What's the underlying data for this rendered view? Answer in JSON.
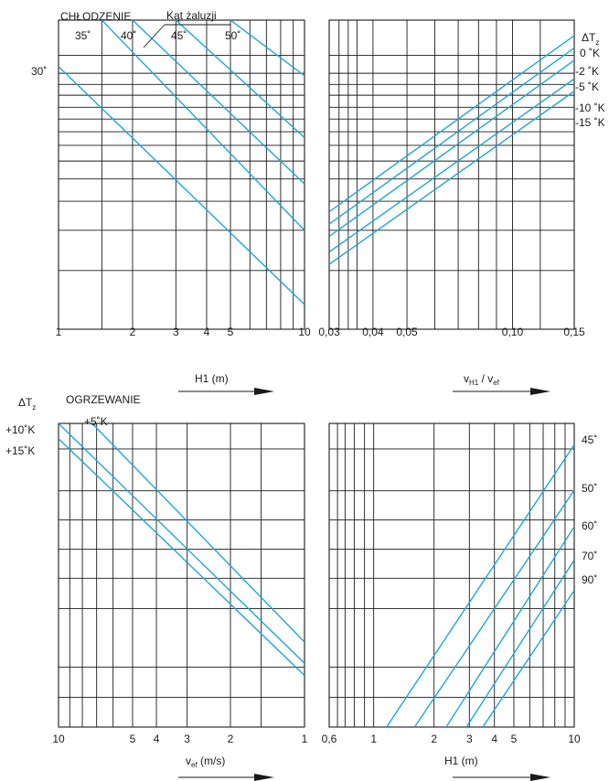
{
  "colors": {
    "curve": "#1ea6d6",
    "grid": "#1a1a1a",
    "text": "#1a1a1a"
  },
  "chart_data": [
    {
      "type": "line",
      "id": "top_left",
      "title": "CHŁODZENIE",
      "annotation": "Kąt żaluzji",
      "xlabel": "H1 (m)",
      "x_scale": "log",
      "xlim": [
        1,
        10
      ],
      "x_ticks": [
        "1",
        "2",
        "3",
        "4",
        "5",
        "10"
      ],
      "series": [
        {
          "name": "30°",
          "x": [
            1,
            10
          ],
          "y": [
            0.85,
            0.08
          ]
        },
        {
          "name": "35°",
          "x": [
            1.5,
            10
          ],
          "y": [
            1.0,
            0.32
          ]
        },
        {
          "name": "40°",
          "x": [
            2,
            10
          ],
          "y": [
            1.0,
            0.47
          ]
        },
        {
          "name": "45°",
          "x": [
            3,
            10
          ],
          "y": [
            1.0,
            0.62
          ]
        },
        {
          "name": "50°",
          "x": [
            5,
            10
          ],
          "y": [
            1.0,
            0.82
          ]
        }
      ]
    },
    {
      "type": "line",
      "id": "top_right",
      "series_title": "ΔTz",
      "xlabel": "vH1 / vef",
      "x_scale": "log",
      "xlim": [
        0.03,
        0.15
      ],
      "x_ticks": [
        "0,03",
        "0,04",
        "0,05",
        "0,10",
        "0,15"
      ],
      "series": [
        {
          "name": "0 °K",
          "x": [
            0.03,
            0.15
          ],
          "y": [
            0.38,
            0.95
          ]
        },
        {
          "name": "-2 °K",
          "x": [
            0.03,
            0.15
          ],
          "y": [
            0.34,
            0.91
          ]
        },
        {
          "name": "-5 °K",
          "x": [
            0.03,
            0.15
          ],
          "y": [
            0.3,
            0.87
          ]
        },
        {
          "name": "-10 °K",
          "x": [
            0.03,
            0.15
          ],
          "y": [
            0.25,
            0.81
          ]
        },
        {
          "name": "-15 °K",
          "x": [
            0.03,
            0.15
          ],
          "y": [
            0.21,
            0.77
          ]
        }
      ]
    },
    {
      "type": "line",
      "id": "bottom_left",
      "title": "OGRZEWANIE",
      "series_title": "ΔTz",
      "xlabel": "vef (m/s)",
      "x_scale": "log_reversed",
      "xlim": [
        10,
        1
      ],
      "x_ticks": [
        "10",
        "5",
        "4",
        "3",
        "2",
        "1"
      ],
      "series": [
        {
          "name": "+5°K",
          "x": [
            7.3,
            1
          ],
          "y": [
            1.0,
            0.28
          ]
        },
        {
          "name": "+10°K",
          "x": [
            10,
            1
          ],
          "y": [
            1.0,
            0.21
          ]
        },
        {
          "name": "+15°K",
          "x": [
            10,
            1
          ],
          "y": [
            0.95,
            0.17
          ]
        }
      ]
    },
    {
      "type": "line",
      "id": "bottom_right",
      "xlabel": "H1 (m)",
      "x_scale": "log",
      "xlim": [
        0.6,
        10
      ],
      "x_ticks": [
        "0,6",
        "1",
        "2",
        "3",
        "4",
        "5",
        "10"
      ],
      "series": [
        {
          "name": "45°",
          "x": [
            1.16,
            10
          ],
          "y": [
            0.0,
            0.93
          ]
        },
        {
          "name": "50°",
          "x": [
            1.6,
            10
          ],
          "y": [
            0.0,
            0.78
          ]
        },
        {
          "name": "60°",
          "x": [
            2.3,
            10
          ],
          "y": [
            0.0,
            0.66
          ]
        },
        {
          "name": "70°",
          "x": [
            2.9,
            10
          ],
          "y": [
            0.0,
            0.55
          ]
        },
        {
          "name": "90°",
          "x": [
            3.5,
            10
          ],
          "y": [
            0.0,
            0.45
          ]
        }
      ]
    }
  ],
  "labels": {
    "cooling": "CHŁODZENIE",
    "louver_angle": "Kąt żaluzji",
    "angle_35": "35˚",
    "angle_40": "40˚",
    "angle_45": "45˚",
    "angle_50": "50˚",
    "angle_30": "30˚",
    "dtz_top": "ΔT",
    "dtz_sub": "z",
    "dt_0": "0 ˚K",
    "dt_m2": "-2 ˚K",
    "dt_m5": "-5 ˚K",
    "dt_m10": "-10 ˚K",
    "dt_m15": "-15 ˚K",
    "h1_label": "H1 (m)",
    "vh1_v": "v",
    "vh1_sub": "H1",
    "vh1_mid": " / v",
    "vh1_sub2": "ef",
    "heating": "OGRZEWANIE",
    "dt_p5": "+5˚K",
    "dt_p10": "+10˚K",
    "dt_p15": "+15˚K",
    "vef_v": "v",
    "vef_sub": "ef",
    "vef_rest": " (m/s)",
    "ang_b45": "45˚",
    "ang_b50": "50˚",
    "ang_b60": "60˚",
    "ang_b70": "70˚",
    "ang_b90": "90˚"
  }
}
